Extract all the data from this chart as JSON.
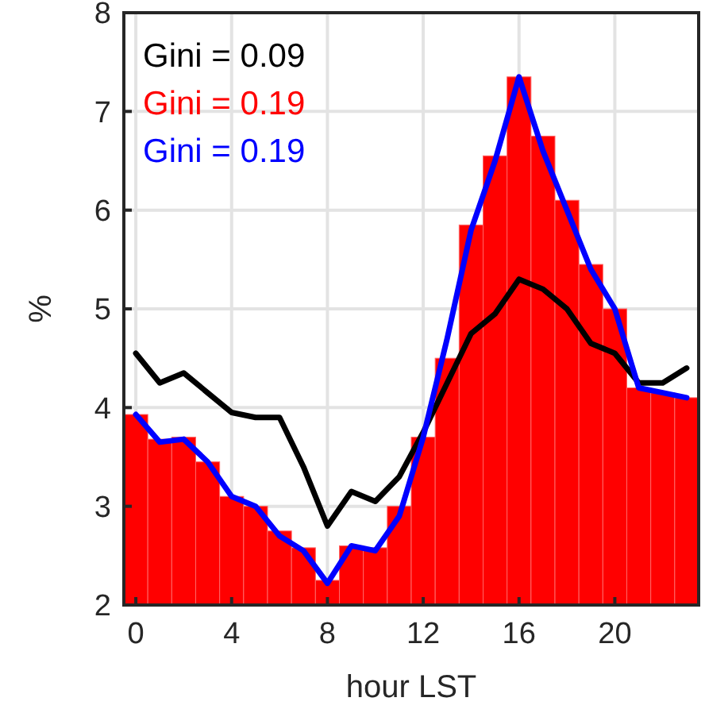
{
  "chart_data": {
    "type": "line",
    "xlabel": "hour LST",
    "ylabel": "%",
    "x": [
      0,
      1,
      2,
      3,
      4,
      5,
      6,
      7,
      8,
      9,
      10,
      11,
      12,
      13,
      14,
      15,
      16,
      17,
      18,
      19,
      20,
      21,
      22,
      23
    ],
    "xlim": [
      -0.5,
      23.5
    ],
    "xticks": [
      0,
      4,
      8,
      12,
      16,
      20
    ],
    "ylim": [
      2,
      8
    ],
    "yticks": [
      2,
      3,
      4,
      5,
      6,
      7,
      8
    ],
    "grid": true,
    "legend": "top left",
    "series": [
      {
        "name": "Gini = 0.09",
        "color": "#000000",
        "values": [
          4.55,
          4.25,
          4.35,
          4.15,
          3.95,
          3.9,
          3.9,
          3.4,
          2.8,
          3.15,
          3.05,
          3.3,
          3.75,
          4.25,
          4.75,
          4.95,
          5.3,
          5.2,
          5.0,
          4.65,
          4.55,
          4.25,
          4.25,
          4.4
        ]
      },
      {
        "name": "Gini = 0.19",
        "type": "bar",
        "color": "#ff0000",
        "values": [
          3.93,
          3.68,
          3.7,
          3.45,
          3.1,
          3.0,
          2.75,
          2.58,
          2.25,
          2.6,
          2.58,
          3.0,
          3.7,
          4.5,
          5.85,
          6.55,
          7.35,
          6.75,
          6.1,
          5.45,
          5.0,
          4.2,
          4.15,
          4.1
        ]
      },
      {
        "name": "Gini = 0.19",
        "color": "#0000ff",
        "values": [
          3.93,
          3.65,
          3.68,
          3.45,
          3.1,
          3.0,
          2.7,
          2.55,
          2.22,
          2.6,
          2.55,
          2.9,
          3.7,
          4.7,
          5.8,
          6.5,
          7.35,
          6.6,
          6.0,
          5.4,
          5.0,
          4.2,
          4.15,
          4.1
        ]
      }
    ]
  }
}
